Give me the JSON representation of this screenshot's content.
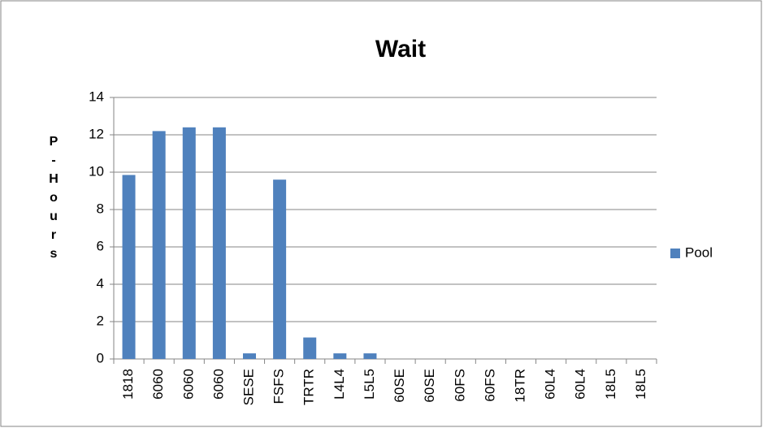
{
  "chart_data": {
    "type": "bar",
    "title": "Wait",
    "y_label": "P-Hours",
    "categories": [
      "1818",
      "6060",
      "6060",
      "6060",
      "SESE",
      "FSFS",
      "TRTR",
      "L4L4",
      "L5L5",
      "60SE",
      "60SE",
      "60FS",
      "60FS",
      "18TR",
      "60L4",
      "60L4",
      "18L5",
      "18L5"
    ],
    "series": [
      {
        "name": "Pool",
        "color": "#4f81bd",
        "values": [
          9.85,
          12.2,
          12.4,
          12.4,
          0.3,
          9.6,
          1.15,
          0.3,
          0.3,
          0,
          0,
          0,
          0,
          0,
          0,
          0,
          0,
          0
        ]
      }
    ],
    "ylim": [
      0,
      14
    ],
    "yticks": [
      0,
      2,
      4,
      6,
      8,
      10,
      12,
      14
    ],
    "grid": true,
    "legend": "right"
  }
}
